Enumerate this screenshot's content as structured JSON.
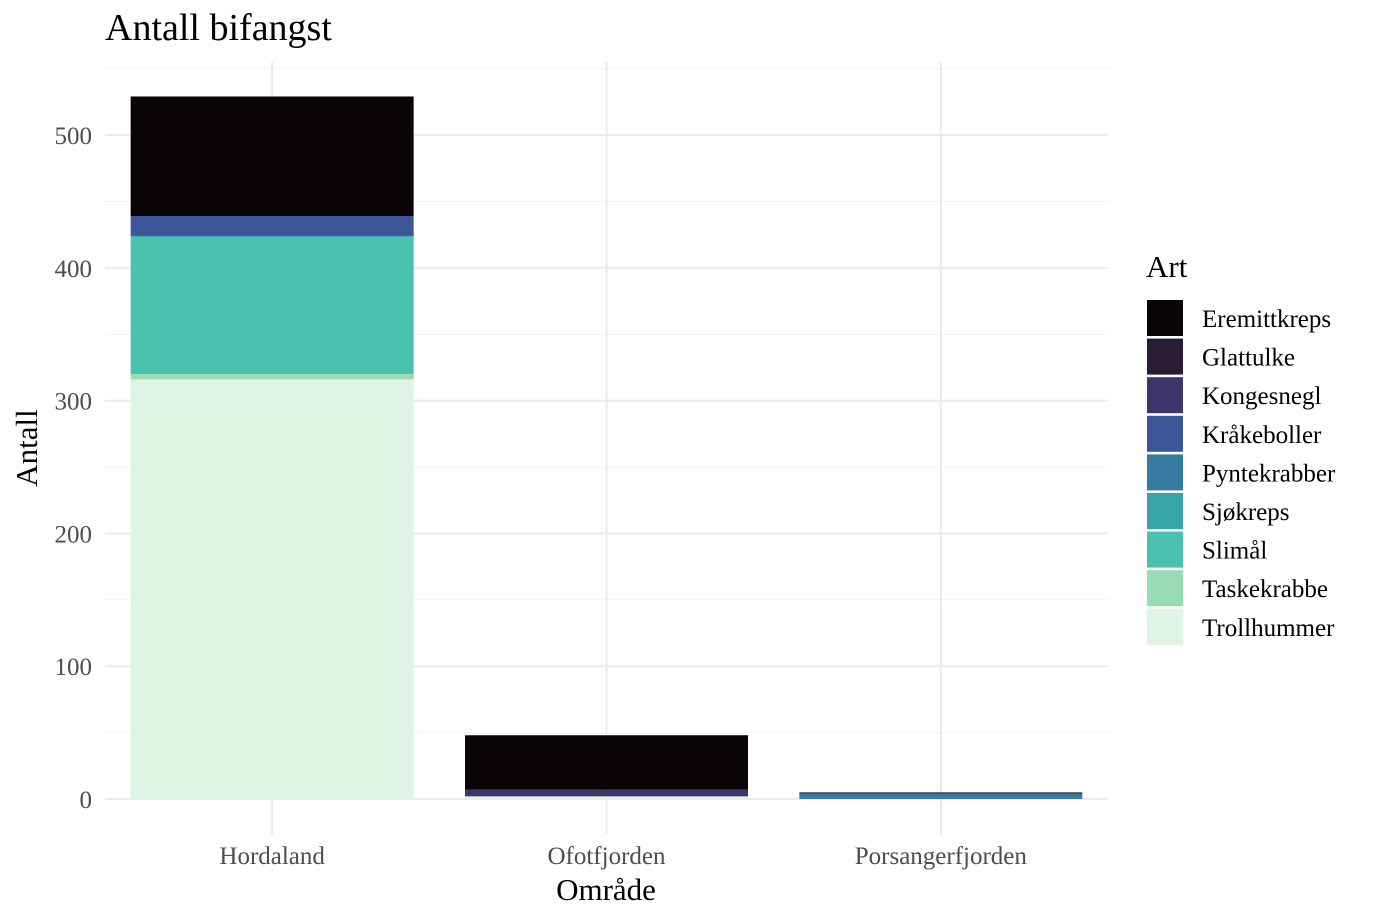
{
  "chart_data": {
    "type": "bar",
    "stacked": true,
    "title": "Antall bifangst",
    "xlabel": "Område",
    "ylabel": "Antall",
    "ylim": [
      0,
      529
    ],
    "yticks": [
      0,
      100,
      200,
      300,
      400,
      500
    ],
    "grid": true,
    "legend_title": "Art",
    "legend_position": "right",
    "categories": [
      "Hordaland",
      "Ofotfjorden",
      "Porsangerfjorden"
    ],
    "series": [
      {
        "name": "Eremittkreps",
        "color": "#0b0405",
        "values": [
          90,
          41,
          0
        ]
      },
      {
        "name": "Glattulke",
        "color": "#2b1c35",
        "values": [
          0,
          0,
          1
        ]
      },
      {
        "name": "Kongesnegl",
        "color": "#3e356b",
        "values": [
          0,
          5,
          0
        ]
      },
      {
        "name": "Kråkeboller",
        "color": "#3b5698",
        "values": [
          15,
          0,
          0
        ]
      },
      {
        "name": "Pyntekrabber",
        "color": "#357ba2",
        "values": [
          0,
          0,
          4
        ]
      },
      {
        "name": "Sjøkreps",
        "color": "#38a3ab",
        "values": [
          1,
          0,
          0
        ]
      },
      {
        "name": "Slimål",
        "color": "#4bc2ad",
        "values": [
          103,
          0,
          0
        ]
      },
      {
        "name": "Taskekrabbe",
        "color": "#98dbb5",
        "values": [
          4,
          0,
          0
        ]
      },
      {
        "name": "Trollhummer",
        "color": "#def5e5",
        "values": [
          316,
          2,
          0
        ]
      }
    ]
  }
}
